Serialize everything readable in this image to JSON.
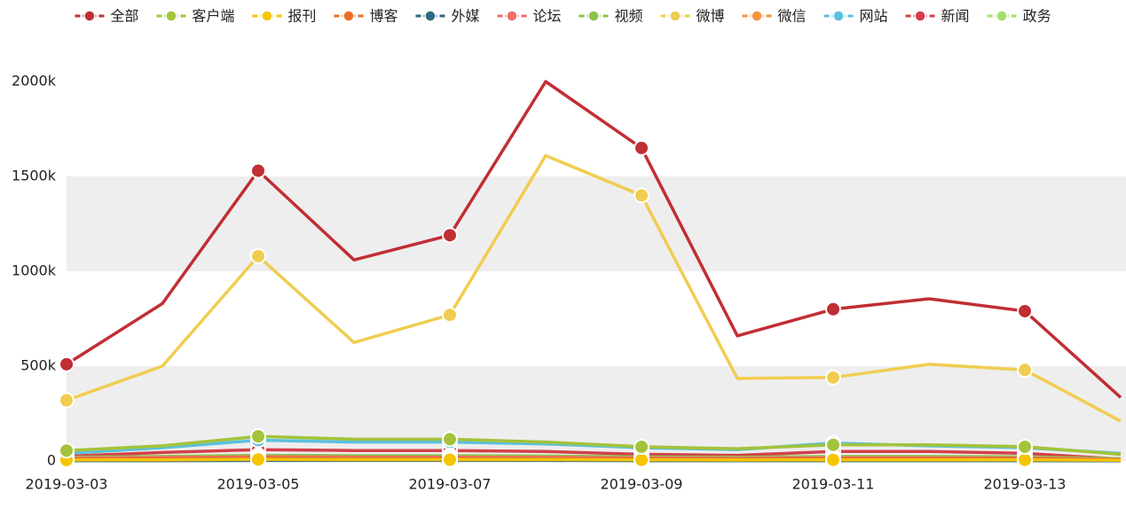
{
  "chart_data": {
    "type": "line",
    "categories": [
      "2019-03-03",
      null,
      "2019-03-05",
      null,
      "2019-03-07",
      null,
      "2019-03-09",
      null,
      "2019-03-11",
      null,
      "2019-03-13",
      null
    ],
    "ylim": [
      0,
      2000
    ],
    "yticks": [
      0,
      {
        "value": 500,
        "label": "500k"
      },
      {
        "value": 1000,
        "label": "1000k"
      },
      {
        "value": 1500,
        "label": "1500k"
      },
      {
        "value": 2000,
        "label": "2000k"
      }
    ],
    "grid": "bands",
    "legend": "top",
    "series": [
      {
        "name": "全部",
        "color": "#c12e34",
        "values": [
          510,
          830,
          1530,
          1060,
          1190,
          2000,
          1650,
          660,
          800,
          855,
          790,
          335
        ]
      },
      {
        "name": "客户端",
        "color": "#a3c33a",
        "values": [
          55,
          80,
          130,
          115,
          115,
          100,
          75,
          65,
          85,
          85,
          75,
          35
        ]
      },
      {
        "name": "报刊",
        "color": "#f5c500",
        "values": [
          5,
          6,
          8,
          7,
          7,
          7,
          6,
          5,
          6,
          6,
          6,
          4
        ]
      },
      {
        "name": "博客",
        "color": "#e6702a",
        "values": [
          10,
          12,
          15,
          14,
          14,
          13,
          11,
          10,
          12,
          12,
          11,
          6
        ]
      },
      {
        "name": "外媒",
        "color": "#2b6a80",
        "values": [
          2,
          2,
          3,
          3,
          3,
          3,
          2,
          2,
          2,
          2,
          2,
          1
        ]
      },
      {
        "name": "论坛",
        "color": "#f76b6b",
        "values": [
          15,
          18,
          22,
          20,
          20,
          19,
          16,
          14,
          17,
          17,
          15,
          8
        ]
      },
      {
        "name": "视频",
        "color": "#8bc34a",
        "values": [
          20,
          24,
          30,
          28,
          28,
          26,
          22,
          20,
          24,
          24,
          22,
          12
        ]
      },
      {
        "name": "微博",
        "color": "#f0cd50",
        "values": [
          320,
          500,
          1080,
          625,
          770,
          1610,
          1400,
          435,
          440,
          510,
          480,
          210
        ]
      },
      {
        "name": "微信",
        "color": "#f3953a",
        "values": [
          12,
          14,
          18,
          16,
          16,
          15,
          13,
          12,
          14,
          14,
          13,
          7
        ]
      },
      {
        "name": "网站",
        "color": "#5bc0de",
        "values": [
          40,
          70,
          110,
          100,
          100,
          90,
          70,
          60,
          95,
          80,
          70,
          40
        ]
      },
      {
        "name": "新闻",
        "color": "#d33f49",
        "values": [
          25,
          45,
          60,
          55,
          55,
          50,
          35,
          30,
          50,
          50,
          40,
          10
        ]
      },
      {
        "name": "政务",
        "color": "#a2e06b",
        "values": [
          3,
          3,
          4,
          4,
          4,
          4,
          3,
          3,
          3,
          3,
          3,
          2
        ]
      }
    ]
  }
}
